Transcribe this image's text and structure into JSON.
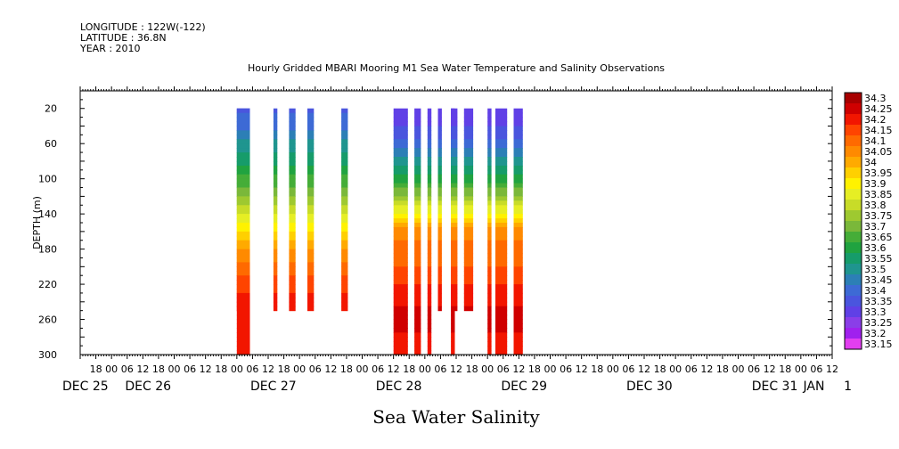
{
  "header": {
    "longitude": "LONGITUDE : 122W(-122)",
    "latitude": "LATITUDE : 36.8N",
    "year": "YEAR : 2010"
  },
  "chart_data": {
    "type": "heatmap",
    "title": "Hourly Gridded MBARI Mooring M1 Sea Water Temperature and Salinity Observations",
    "caption": "Sea Water Salinity",
    "ylabel": "DEPTH (m)",
    "xlabel": "",
    "y_reversed": true,
    "ylim": [
      300,
      0
    ],
    "y_ticks": [
      20,
      60,
      100,
      140,
      180,
      220,
      260,
      300
    ],
    "x_unit": "hours from DEC 25 00:00",
    "xlim": [
      12,
      300
    ],
    "hour_ticks": [
      {
        "h": 18,
        "label": "18"
      },
      {
        "h": 24,
        "label": "00"
      },
      {
        "h": 30,
        "label": "06"
      },
      {
        "h": 36,
        "label": "12"
      },
      {
        "h": 42,
        "label": "18"
      },
      {
        "h": 48,
        "label": "00"
      },
      {
        "h": 54,
        "label": "06"
      },
      {
        "h": 60,
        "label": "12"
      },
      {
        "h": 66,
        "label": "18"
      },
      {
        "h": 72,
        "label": "00"
      },
      {
        "h": 78,
        "label": "06"
      },
      {
        "h": 84,
        "label": "12"
      },
      {
        "h": 90,
        "label": "18"
      },
      {
        "h": 96,
        "label": "00"
      },
      {
        "h": 102,
        "label": "06"
      },
      {
        "h": 108,
        "label": "12"
      },
      {
        "h": 114,
        "label": "18"
      },
      {
        "h": 120,
        "label": "00"
      },
      {
        "h": 126,
        "label": "06"
      },
      {
        "h": 132,
        "label": "12"
      },
      {
        "h": 138,
        "label": "18"
      },
      {
        "h": 144,
        "label": "00"
      },
      {
        "h": 150,
        "label": "06"
      },
      {
        "h": 156,
        "label": "12"
      },
      {
        "h": 162,
        "label": "18"
      },
      {
        "h": 168,
        "label": "00"
      },
      {
        "h": 174,
        "label": "06"
      },
      {
        "h": 180,
        "label": "12"
      },
      {
        "h": 186,
        "label": "18"
      },
      {
        "h": 192,
        "label": "00"
      },
      {
        "h": 198,
        "label": "06"
      },
      {
        "h": 204,
        "label": "12"
      },
      {
        "h": 210,
        "label": "18"
      },
      {
        "h": 216,
        "label": "00"
      },
      {
        "h": 222,
        "label": "06"
      },
      {
        "h": 228,
        "label": "12"
      },
      {
        "h": 234,
        "label": "18"
      },
      {
        "h": 240,
        "label": "00"
      },
      {
        "h": 246,
        "label": "06"
      },
      {
        "h": 252,
        "label": "12"
      },
      {
        "h": 258,
        "label": "18"
      },
      {
        "h": 264,
        "label": "00"
      },
      {
        "h": 270,
        "label": "06"
      },
      {
        "h": 276,
        "label": "12"
      },
      {
        "h": 282,
        "label": "18"
      },
      {
        "h": 288,
        "label": "00"
      },
      {
        "h": 294,
        "label": "06"
      },
      {
        "h": 300,
        "label": "12"
      }
    ],
    "day_labels": [
      {
        "h": 14,
        "label": "DEC 25"
      },
      {
        "h": 38,
        "label": "DEC 26"
      },
      {
        "h": 86,
        "label": "DEC 27"
      },
      {
        "h": 134,
        "label": "DEC 28"
      },
      {
        "h": 182,
        "label": "DEC 29"
      },
      {
        "h": 230,
        "label": "DEC 30"
      },
      {
        "h": 278,
        "label": "DEC 31"
      },
      {
        "h": 293,
        "label": "JAN"
      },
      {
        "h": 306,
        "label": "1"
      }
    ],
    "colorbar_levels": [
      "33.15",
      "33.2",
      "33.25",
      "33.3",
      "33.35",
      "33.4",
      "33.45",
      "33.5",
      "33.55",
      "33.6",
      "33.65",
      "33.7",
      "33.75",
      "33.8",
      "33.85",
      "33.9",
      "33.95",
      "34",
      "34.05",
      "34.1",
      "34.15",
      "34.2",
      "34.25",
      "34.3"
    ],
    "colorbar_colors": [
      "#e23ef0",
      "#a020ee",
      "#8a3ee8",
      "#6040e6",
      "#4a55de",
      "#3d6ad5",
      "#2c7fb6",
      "#1f958f",
      "#169c6a",
      "#20a340",
      "#45ad38",
      "#7ab83a",
      "#9ec930",
      "#c8dc28",
      "#e6ee24",
      "#fff200",
      "#ffd000",
      "#ffaa00",
      "#ff8a00",
      "#ff6a00",
      "#ff4400",
      "#f21600",
      "#cf0000",
      "#a80000"
    ],
    "profiles": [
      {
        "depth": [
          20,
          40,
          60,
          80,
          100,
          120,
          140,
          160,
          180,
          200,
          220,
          240,
          260,
          280,
          300
        ],
        "salinity": [
          33.38,
          33.44,
          33.52,
          33.58,
          33.66,
          33.75,
          33.84,
          33.95,
          34.05,
          34.12,
          34.18,
          34.22,
          34.25,
          34.23,
          34.22
        ]
      },
      {
        "depth": [
          20,
          40,
          60,
          80,
          100,
          120,
          140,
          160,
          180,
          200,
          220,
          240,
          260,
          280,
          300
        ],
        "salinity": [
          33.3,
          33.34,
          33.42,
          33.52,
          33.62,
          33.75,
          33.92,
          34.08,
          34.12,
          34.15,
          34.2,
          34.24,
          34.27,
          34.24,
          34.22
        ]
      }
    ],
    "segments": [
      {
        "t0": 72,
        "t1": 77,
        "bottom": 250,
        "pid": 0
      },
      {
        "t0": 72,
        "t1": 77,
        "bottom": 300,
        "pid": 0
      },
      {
        "t0": 86,
        "t1": 87.5,
        "bottom": 250,
        "pid": 0
      },
      {
        "t0": 92,
        "t1": 94.5,
        "bottom": 250,
        "pid": 0
      },
      {
        "t0": 99,
        "t1": 101.5,
        "bottom": 250,
        "pid": 0
      },
      {
        "t0": 112,
        "t1": 114.5,
        "bottom": 250,
        "pid": 0
      },
      {
        "t0": 132,
        "t1": 137.5,
        "bottom": 300,
        "pid": 1
      },
      {
        "t0": 140,
        "t1": 142.5,
        "bottom": 300,
        "pid": 1
      },
      {
        "t0": 145,
        "t1": 146.5,
        "bottom": 300,
        "pid": 1
      },
      {
        "t0": 149,
        "t1": 150.5,
        "bottom": 250,
        "pid": 1
      },
      {
        "t0": 154,
        "t1": 156.5,
        "bottom": 250,
        "pid": 1
      },
      {
        "t0": 154,
        "t1": 155.5,
        "bottom": 300,
        "pid": 1
      },
      {
        "t0": 159,
        "t1": 162.5,
        "bottom": 250,
        "pid": 1
      },
      {
        "t0": 168,
        "t1": 169.5,
        "bottom": 300,
        "pid": 1
      },
      {
        "t0": 171,
        "t1": 175.5,
        "bottom": 300,
        "pid": 1
      },
      {
        "t0": 178,
        "t1": 181.5,
        "bottom": 300,
        "pid": 1
      }
    ]
  }
}
